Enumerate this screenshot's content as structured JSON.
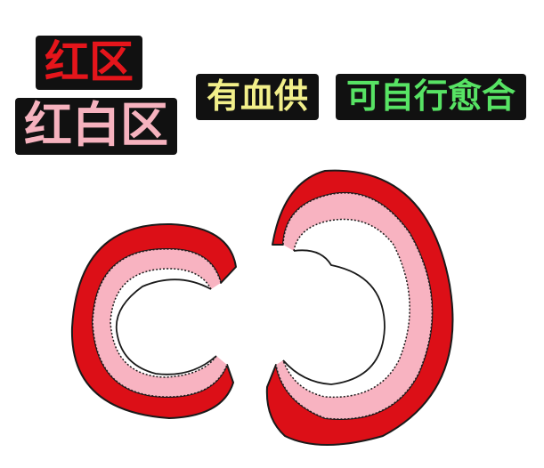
{
  "labels": {
    "red_zone": "红区",
    "red_white_zone": "红白区",
    "blood_supply": "有血供",
    "self_healing": "可自行愈合"
  },
  "colors": {
    "red_zone": "#dc0f17",
    "red_white_zone": "#f8b3c1",
    "white_zone": "#ffffff",
    "outline": "#1a1a1a",
    "label_background": "#111111",
    "blood_supply_text": "#f2ef8a",
    "self_healing_text": "#57e364"
  }
}
